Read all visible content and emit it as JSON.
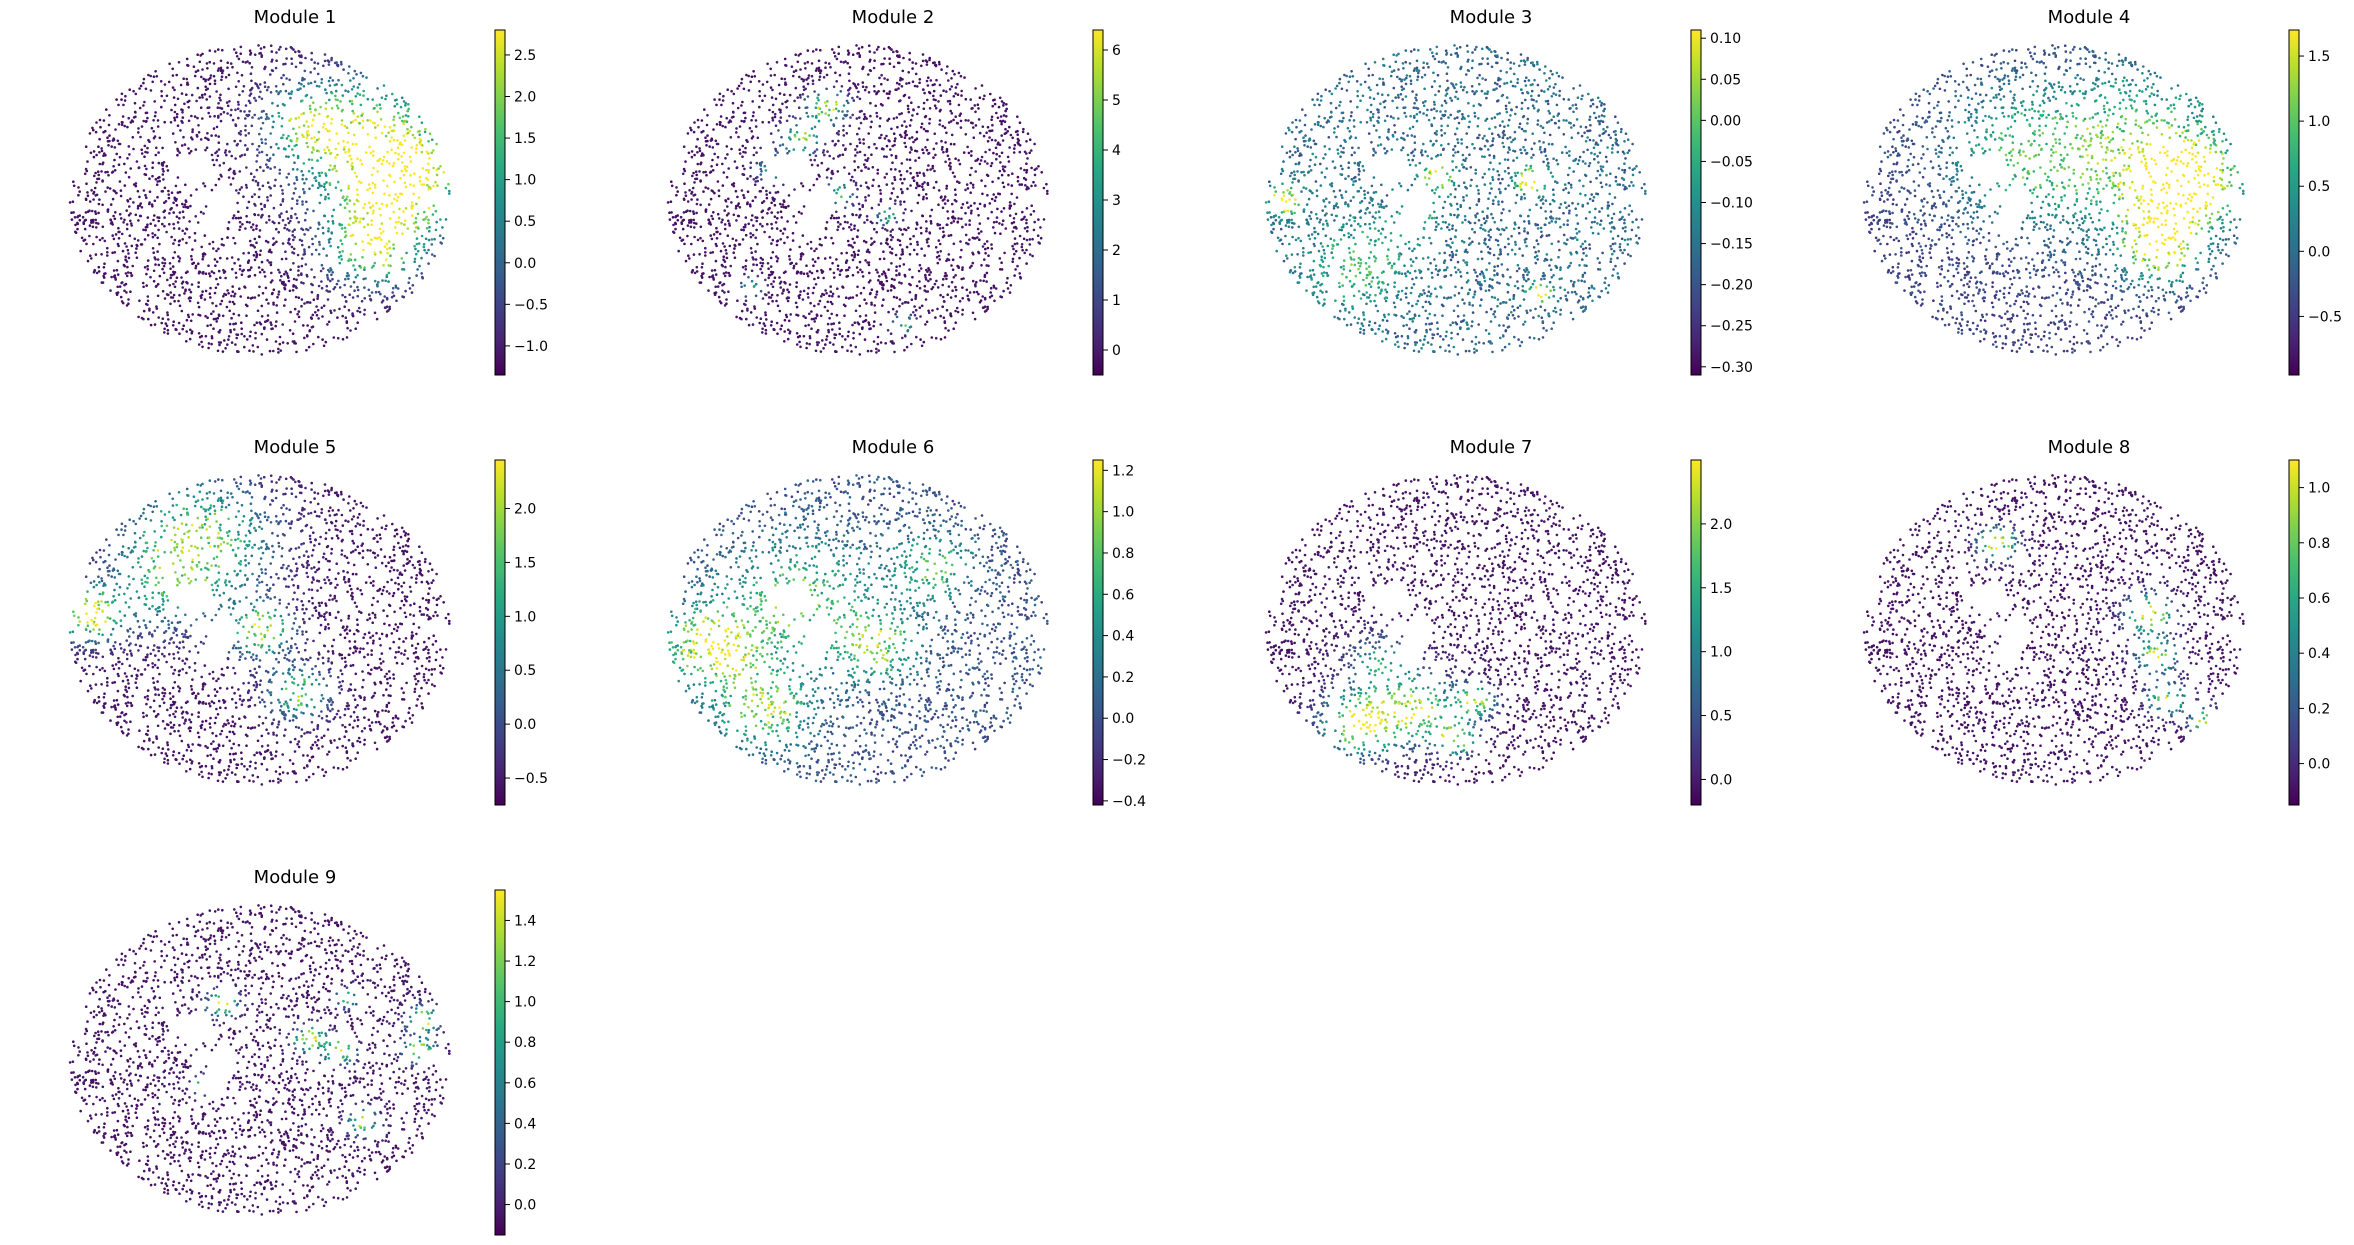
{
  "chart_data": {
    "type": "scatter",
    "description_free": true,
    "colormap": "viridis",
    "panels": [
      {
        "title": "Module 1",
        "clim": [
          -1.35,
          2.8
        ],
        "ticks": [
          -1.0,
          -0.5,
          0.0,
          0.5,
          1.0,
          1.5,
          2.0,
          2.5
        ],
        "tick_labels": [
          "−1.0",
          "−0.5",
          "0.0",
          "0.5",
          "1.0",
          "1.5",
          "2.0",
          "2.5"
        ],
        "hotspots": [
          [
            0.78,
            0.3,
            0.2,
            0.75
          ],
          [
            0.88,
            0.45,
            0.16,
            0.9
          ],
          [
            0.8,
            0.65,
            0.12,
            0.85
          ],
          [
            0.62,
            0.25,
            0.1,
            0.55
          ]
        ]
      },
      {
        "title": "Module 2",
        "clim": [
          -0.5,
          6.4
        ],
        "ticks": [
          0,
          1,
          2,
          3,
          4,
          5,
          6
        ],
        "tick_labels": [
          "0",
          "1",
          "2",
          "3",
          "4",
          "5",
          "6"
        ],
        "hotspots": [
          [
            0.42,
            0.2,
            0.05,
            0.9
          ],
          [
            0.35,
            0.3,
            0.05,
            0.8
          ],
          [
            0.28,
            0.4,
            0.04,
            0.7
          ],
          [
            0.45,
            0.48,
            0.04,
            0.6
          ],
          [
            0.58,
            0.55,
            0.03,
            0.6
          ],
          [
            0.22,
            0.78,
            0.03,
            0.6
          ],
          [
            0.62,
            0.9,
            0.03,
            0.6
          ]
        ]
      },
      {
        "title": "Module 3",
        "clim": [
          -0.31,
          0.11
        ],
        "ticks": [
          -0.3,
          -0.25,
          -0.2,
          -0.15,
          -0.1,
          -0.05,
          0.0,
          0.05,
          0.1
        ],
        "tick_labels": [
          "−0.30",
          "−0.25",
          "−0.20",
          "−0.15",
          "−0.10",
          "−0.05",
          "0.00",
          "0.05",
          "0.10"
        ],
        "base": 0.35,
        "hotspots": [
          [
            0.05,
            0.5,
            0.04,
            0.9
          ],
          [
            0.45,
            0.42,
            0.04,
            0.8
          ],
          [
            0.7,
            0.44,
            0.04,
            0.9
          ],
          [
            0.72,
            0.8,
            0.03,
            0.9
          ],
          [
            0.4,
            0.55,
            0.05,
            0.4
          ],
          [
            0.25,
            0.7,
            0.14,
            0.35
          ]
        ]
      },
      {
        "title": "Module 4",
        "clim": [
          -0.95,
          1.7
        ],
        "ticks": [
          -0.5,
          0.0,
          0.5,
          1.0,
          1.5
        ],
        "tick_labels": [
          "−0.5",
          "0.0",
          "0.5",
          "1.0",
          "1.5"
        ],
        "base": 0.2,
        "hotspots": [
          [
            0.72,
            0.35,
            0.25,
            0.6
          ],
          [
            0.85,
            0.45,
            0.12,
            0.9
          ],
          [
            0.78,
            0.65,
            0.1,
            0.85
          ],
          [
            0.4,
            0.35,
            0.2,
            0.4
          ]
        ]
      },
      {
        "title": "Module 5",
        "clim": [
          -0.75,
          2.45
        ],
        "ticks": [
          -0.5,
          0.0,
          0.5,
          1.0,
          1.5,
          2.0
        ],
        "tick_labels": [
          "−0.5",
          "0.0",
          "0.5",
          "1.0",
          "1.5",
          "2.0"
        ],
        "hotspots": [
          [
            0.05,
            0.45,
            0.08,
            0.95
          ],
          [
            0.35,
            0.2,
            0.18,
            0.7
          ],
          [
            0.5,
            0.5,
            0.08,
            0.85
          ],
          [
            0.6,
            0.7,
            0.08,
            0.75
          ],
          [
            0.25,
            0.35,
            0.15,
            0.45
          ]
        ]
      },
      {
        "title": "Module 6",
        "clim": [
          -0.42,
          1.25
        ],
        "ticks": [
          -0.4,
          -0.2,
          0.0,
          0.2,
          0.4,
          0.6,
          0.8,
          1.0,
          1.2
        ],
        "tick_labels": [
          "−0.4",
          "−0.2",
          "0.0",
          "0.2",
          "0.4",
          "0.6",
          "0.8",
          "1.0",
          "1.2"
        ],
        "base": 0.25,
        "hotspots": [
          [
            0.12,
            0.55,
            0.12,
            0.8
          ],
          [
            0.35,
            0.4,
            0.18,
            0.5
          ],
          [
            0.25,
            0.75,
            0.12,
            0.6
          ],
          [
            0.55,
            0.55,
            0.1,
            0.6
          ],
          [
            0.7,
            0.3,
            0.1,
            0.5
          ]
        ]
      },
      {
        "title": "Module 7",
        "clim": [
          -0.2,
          2.5
        ],
        "ticks": [
          0.0,
          0.5,
          1.0,
          1.5,
          2.0
        ],
        "tick_labels": [
          "0.0",
          "0.5",
          "1.0",
          "1.5",
          "2.0"
        ],
        "hotspots": [
          [
            0.25,
            0.8,
            0.1,
            0.95
          ],
          [
            0.4,
            0.75,
            0.1,
            0.8
          ],
          [
            0.5,
            0.85,
            0.05,
            0.9
          ],
          [
            0.55,
            0.73,
            0.05,
            0.8
          ],
          [
            0.3,
            0.6,
            0.08,
            0.5
          ]
        ]
      },
      {
        "title": "Module 8",
        "clim": [
          -0.15,
          1.1
        ],
        "ticks": [
          0.0,
          0.2,
          0.4,
          0.6,
          0.8,
          1.0
        ],
        "tick_labels": [
          "0.0",
          "0.2",
          "0.4",
          "0.6",
          "0.8",
          "1.0"
        ],
        "hotspots": [
          [
            0.35,
            0.22,
            0.05,
            0.9
          ],
          [
            0.75,
            0.45,
            0.06,
            0.9
          ],
          [
            0.77,
            0.58,
            0.05,
            0.9
          ],
          [
            0.8,
            0.72,
            0.05,
            0.8
          ],
          [
            0.9,
            0.8,
            0.04,
            0.9
          ]
        ]
      },
      {
        "title": "Module 9",
        "clim": [
          -0.15,
          1.55
        ],
        "ticks": [
          0.0,
          0.2,
          0.4,
          0.6,
          0.8,
          1.0,
          1.2,
          1.4
        ],
        "tick_labels": [
          "0.0",
          "0.2",
          "0.4",
          "0.6",
          "0.8",
          "1.0",
          "1.2",
          "1.4"
        ],
        "hotspots": [
          [
            0.4,
            0.32,
            0.04,
            0.95
          ],
          [
            0.63,
            0.43,
            0.04,
            0.9
          ],
          [
            0.71,
            0.47,
            0.04,
            0.9
          ],
          [
            0.93,
            0.37,
            0.04,
            0.9
          ],
          [
            0.92,
            0.47,
            0.04,
            0.85
          ],
          [
            0.77,
            0.7,
            0.04,
            0.8
          ],
          [
            0.73,
            0.3,
            0.03,
            0.7
          ],
          [
            0.35,
            0.58,
            0.03,
            0.6
          ]
        ]
      }
    ]
  }
}
